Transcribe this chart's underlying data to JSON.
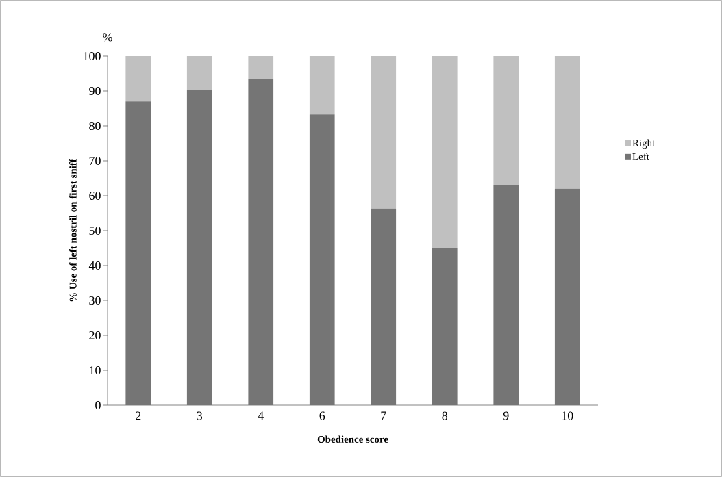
{
  "chart_data": {
    "type": "bar",
    "stacked": true,
    "ylabel": "% Use of left nostril on first sniff",
    "xlabel": "Obedience score",
    "annotations": [
      "%"
    ],
    "categories": [
      "2",
      "3",
      "4",
      "6",
      "7",
      "8",
      "9",
      "10"
    ],
    "series": [
      {
        "name": "Left",
        "color": "#757575",
        "values": [
          87,
          90.3,
          93.5,
          83.3,
          56.3,
          45,
          63,
          62
        ]
      },
      {
        "name": "Right",
        "color": "#c0c0c0",
        "values": [
          13,
          9.7,
          6.5,
          16.7,
          43.7,
          55,
          37,
          38
        ]
      }
    ],
    "ylim": [
      0,
      100
    ],
    "yticks": [
      0,
      10,
      20,
      30,
      40,
      50,
      60,
      70,
      80,
      90,
      100
    ],
    "legend": "right",
    "grid": false
  }
}
